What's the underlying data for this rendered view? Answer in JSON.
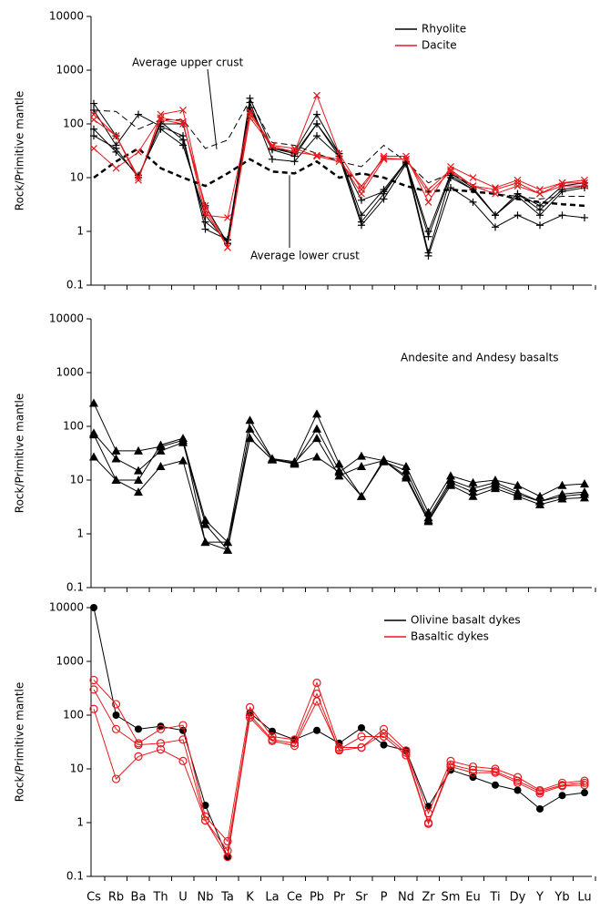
{
  "chart_data": [
    {
      "type": "line",
      "log": true,
      "ylim": [
        0.1,
        10000
      ],
      "yticks": [
        0.1,
        1,
        10,
        100,
        1000,
        10000
      ],
      "ylabel": "Rock/Primitive mantle",
      "legend": "upper right",
      "series": [
        {
          "name": "Rhyolite",
          "color": "#000000",
          "marker": "plus",
          "samples": [
            [
              240,
              60,
              10,
              100,
              100,
              3,
              0.6,
              300,
              35,
              30,
              150,
              28,
              1.5,
              5,
              20,
              0.4,
              10,
              6,
              2,
              5,
              2.5,
              6,
              7
            ],
            [
              180,
              40,
              150,
              90,
              60,
              1.1,
              0.7,
              250,
              22,
              20,
              60,
              25,
              1.3,
              4,
              18,
              0.35,
              6.5,
              3.5,
              1.2,
              2,
              1.3,
              2,
              1.8
            ],
            [
              80,
              30,
              11,
              80,
              40,
              2,
              0.6,
              200,
              33,
              25,
              100,
              25,
              3.8,
              5.5,
              19,
              0.8,
              11,
              6,
              2,
              4.5,
              2,
              5.5,
              6.5
            ],
            [
              60,
              35,
              10,
              110,
              50,
              1.5,
              0.7,
              180,
              35,
              28,
              100,
              28,
              2,
              6,
              20,
              1,
              12,
              6.5,
              2,
              5,
              3,
              7,
              8
            ]
          ]
        },
        {
          "name": "Dacite",
          "color": "#e8191e",
          "marker": "cross",
          "samples": [
            [
              150,
              60,
              9,
              150,
              180,
              2.5,
              0.5,
              170,
              38,
              30,
              340,
              28,
              6,
              25,
              25,
              3.5,
              16,
              10,
              6.5,
              9,
              6,
              8,
              9
            ],
            [
              35,
              15,
              30,
              130,
              110,
              2,
              1.8,
              150,
              40,
              35,
              25,
              20,
              7,
              23,
              22,
              5,
              13,
              7,
              5,
              7,
              5,
              7,
              7
            ],
            [
              120,
              60,
              10,
              120,
              100,
              3,
              0.5,
              130,
              38,
              30,
              26,
              22,
              5,
              22,
              22,
              6,
              14,
              7,
              6,
              8,
              5,
              8,
              8
            ]
          ]
        }
      ],
      "references": [
        {
          "name": "Average upper crust",
          "color": "#000000",
          "style": "thin-dashed",
          "values": [
            180,
            170,
            80,
            120,
            120,
            35,
            50,
            280,
            45,
            40,
            28,
            20,
            16,
            40,
            20,
            8,
            12,
            7,
            5,
            4.5,
            4,
            4.5,
            4.5
          ]
        },
        {
          "name": "Average lower crust",
          "color": "#000000",
          "style": "thick-dashed",
          "values": [
            10,
            20,
            35,
            15,
            10,
            7,
            12,
            22,
            13,
            12,
            20,
            10,
            12,
            10,
            7,
            5.5,
            6,
            5.5,
            5,
            4,
            3.5,
            3.2,
            3
          ]
        }
      ]
    },
    {
      "type": "line",
      "log": true,
      "ylim": [
        0.1,
        10000
      ],
      "yticks": [
        0.1,
        1,
        10,
        100,
        1000,
        10000
      ],
      "ylabel": "Rock/Primitive mantle",
      "annotation": "Andesite and Andesy basalts",
      "series": [
        {
          "color": "#000000",
          "marker": "triangle",
          "samples": [
            [
              270,
              35,
              35,
              42,
              55,
              1.8,
              0.7,
              130,
              25,
              22,
              170,
              20,
              5,
              24,
              18,
              2.5,
              12,
              9,
              10,
              8,
              5,
              8,
              8.5
            ],
            [
              75,
              25,
              15,
              35,
              50,
              1.5,
              0.5,
              90,
              25,
              20,
              90,
              15,
              5,
              22,
              15,
              2,
              10,
              7,
              9,
              6,
              4,
              5.5,
              6
            ],
            [
              70,
              10,
              10,
              45,
              60,
              0.7,
              0.7,
              60,
              24,
              21,
              60,
              12,
              18,
              23,
              12,
              1.8,
              9,
              6,
              8,
              5.5,
              4,
              5,
              5.5
            ],
            [
              27,
              10,
              6,
              18,
              23,
              0.7,
              0.5,
              60,
              24,
              20,
              27,
              14,
              28,
              23,
              11,
              1.7,
              8,
              5,
              7,
              5,
              3.5,
              4.5,
              4.7
            ]
          ]
        }
      ]
    },
    {
      "type": "line",
      "log": true,
      "ylim": [
        0.1,
        10000
      ],
      "yticks": [
        0.1,
        1,
        10,
        100,
        1000,
        10000
      ],
      "ylabel": "Rock/Primitive mantle",
      "legend": "upper right",
      "categories": [
        "Cs",
        "Rb",
        "Ba",
        "Th",
        "U",
        "Nb",
        "Ta",
        "K",
        "La",
        "Ce",
        "Pb",
        "Pr",
        "Sr",
        "P",
        "Nd",
        "Zr",
        "Sm",
        "Eu",
        "Ti",
        "Dy",
        "Y",
        "Yb",
        "Lu"
      ],
      "series": [
        {
          "name": "Olivine basalt dykes",
          "color": "#000000",
          "marker": "dot",
          "samples": [
            [
              10000,
              100,
              55,
              62,
              52,
              2.1,
              0.23,
              110,
              50,
              35,
              52,
              30,
              58,
              28,
              22,
              2,
              9.5,
              7,
              5,
              4,
              1.8,
              3.2,
              3.6
            ]
          ]
        },
        {
          "name": "Basaltic dykes",
          "color": "#e8191e",
          "marker": "ring",
          "samples": [
            [
              450,
              160,
              30,
              55,
              65,
              1.3,
              0.45,
              140,
              40,
              35,
              400,
              25,
              25,
              55,
              22,
              1.5,
              14,
              11,
              10,
              7,
              4,
              5.5,
              6
            ],
            [
              300,
              55,
              28,
              30,
              35,
              1.1,
              0.3,
              100,
              35,
              30,
              250,
              22,
              25,
              45,
              20,
              1,
              12,
              9.5,
              9,
              6,
              3.8,
              5,
              5.5
            ],
            [
              130,
              6.5,
              17,
              23,
              14,
              1.1,
              0.23,
              90,
              33,
              27,
              180,
              23,
              40,
              40,
              18,
              0.95,
              11,
              8.5,
              8.5,
              5.5,
              3.5,
              4.8,
              5
            ]
          ]
        }
      ]
    }
  ]
}
